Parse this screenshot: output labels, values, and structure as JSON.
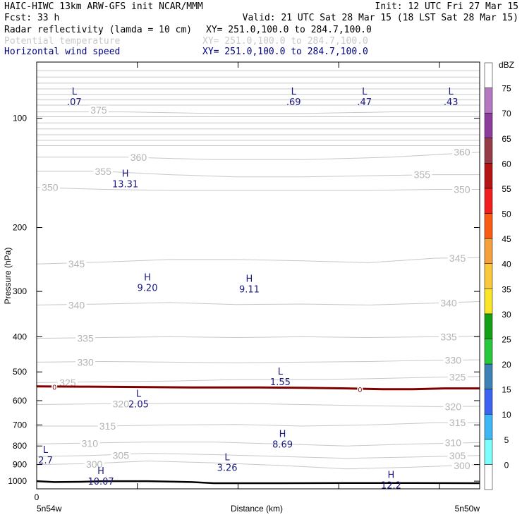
{
  "header": {
    "line1_left": "HAIC-HIWC 13km ARW-GFS init   NCAR/MMM",
    "line1_right": "Init: 12 UTC Fri 27 Mar 15",
    "fcst": "Fcst:   33 h",
    "valid": "Valid: 21 UTC Sat 28 Mar 15 (18 LST Sat 28 Mar 15)",
    "fields": [
      {
        "name": "Radar reflectivity (lamda = 10 cm)",
        "xy": "XY= 251.0,100.0 to 284.7,100.0",
        "color": "#000000"
      },
      {
        "name": "Potential temperature",
        "xy": "XY= 251.0,100.0 to 284.7,100.0",
        "color": "#c8c8c8"
      },
      {
        "name": "Horizontal wind speed",
        "xy": "XY= 251.0,100.0 to 284.7,100.0",
        "color": "#000080"
      }
    ]
  },
  "chart_data": {
    "type": "cross-section",
    "ylabel": "Pressure (hPa)",
    "xlabel": "Distance (km)",
    "x_tick_zero": "0",
    "x_left_label": "5n54w",
    "x_right_label": "5n50w",
    "y_ticks": [
      100,
      200,
      300,
      400,
      500,
      600,
      700,
      800,
      900,
      1000
    ],
    "y_scale": "log",
    "ylim": [
      1050,
      70
    ],
    "xlim": [
      0,
      100
    ],
    "colorbar": {
      "unit": "dBZ",
      "levels": [
        0,
        5,
        10,
        15,
        20,
        25,
        30,
        35,
        40,
        45,
        50,
        55,
        60,
        65,
        70,
        75
      ],
      "colors": [
        "#ffffff",
        "#7dfdfd",
        "#3fb6f5",
        "#3c64f0",
        "#3c82b4",
        "#28c83c",
        "#14a014",
        "#fae628",
        "#fac83c",
        "#f5a03c",
        "#fa5a14",
        "#f01e1e",
        "#b41414",
        "#963c46",
        "#8c3c9b",
        "#b478c3",
        "#ffffff"
      ]
    },
    "theta_contours": [
      {
        "value": 300,
        "labels": [
          {
            "x": 13,
            "p": 897
          },
          {
            "x": 96,
            "p": 905
          }
        ],
        "path": [
          [
            0,
            900
          ],
          [
            12,
            895
          ],
          [
            25,
            880
          ],
          [
            40,
            890
          ],
          [
            55,
            905
          ],
          [
            70,
            925
          ],
          [
            85,
            915
          ],
          [
            100,
            900
          ]
        ]
      },
      {
        "value": 305,
        "labels": [
          {
            "x": 19,
            "p": 848
          },
          {
            "x": 95,
            "p": 850
          }
        ],
        "path": [
          [
            0,
            855
          ],
          [
            12,
            850
          ],
          [
            25,
            838
          ],
          [
            40,
            845
          ],
          [
            55,
            855
          ],
          [
            70,
            865
          ],
          [
            85,
            858
          ],
          [
            100,
            850
          ]
        ]
      },
      {
        "value": 310,
        "labels": [
          {
            "x": 12,
            "p": 787
          },
          {
            "x": 94,
            "p": 783
          }
        ],
        "path": [
          [
            0,
            790
          ],
          [
            12,
            785
          ],
          [
            25,
            780
          ],
          [
            40,
            780
          ],
          [
            55,
            790
          ],
          [
            70,
            800
          ],
          [
            85,
            790
          ],
          [
            100,
            783
          ]
        ]
      },
      {
        "value": 315,
        "labels": [
          {
            "x": 16,
            "p": 705
          },
          {
            "x": 95,
            "p": 690
          }
        ],
        "path": [
          [
            0,
            705
          ],
          [
            15,
            705
          ],
          [
            30,
            700
          ],
          [
            45,
            698
          ],
          [
            60,
            705
          ],
          [
            75,
            700
          ],
          [
            90,
            690
          ],
          [
            100,
            690
          ]
        ]
      },
      {
        "value": 320,
        "labels": [
          {
            "x": 19,
            "p": 612
          },
          {
            "x": 94,
            "p": 623
          }
        ],
        "path": [
          [
            0,
            615
          ],
          [
            15,
            612
          ],
          [
            30,
            610
          ],
          [
            45,
            610
          ],
          [
            60,
            615
          ],
          [
            75,
            620
          ],
          [
            90,
            623
          ],
          [
            100,
            622
          ]
        ]
      },
      {
        "value": 325,
        "labels": [
          {
            "x": 7,
            "p": 535
          },
          {
            "x": 95,
            "p": 517
          }
        ],
        "path": [
          [
            0,
            535
          ],
          [
            15,
            532
          ],
          [
            30,
            530
          ],
          [
            45,
            525
          ],
          [
            60,
            525
          ],
          [
            75,
            522
          ],
          [
            90,
            517
          ],
          [
            100,
            515
          ]
        ]
      },
      {
        "value": 330,
        "labels": [
          {
            "x": 11,
            "p": 470
          },
          {
            "x": 94,
            "p": 464
          }
        ],
        "path": [
          [
            0,
            470
          ],
          [
            15,
            468
          ],
          [
            30,
            470
          ],
          [
            45,
            472
          ],
          [
            60,
            470
          ],
          [
            75,
            468
          ],
          [
            90,
            464
          ],
          [
            100,
            463
          ]
        ]
      },
      {
        "value": 335,
        "labels": [
          {
            "x": 11,
            "p": 404
          },
          {
            "x": 93,
            "p": 400
          }
        ],
        "path": [
          [
            0,
            404
          ],
          [
            15,
            402
          ],
          [
            30,
            400
          ],
          [
            45,
            402
          ],
          [
            60,
            400
          ],
          [
            75,
            402
          ],
          [
            90,
            400
          ],
          [
            100,
            398
          ]
        ]
      },
      {
        "value": 340,
        "labels": [
          {
            "x": 9,
            "p": 327
          },
          {
            "x": 93,
            "p": 323
          }
        ],
        "path": [
          [
            0,
            327
          ],
          [
            15,
            325
          ],
          [
            30,
            322
          ],
          [
            45,
            326
          ],
          [
            60,
            325
          ],
          [
            75,
            327
          ],
          [
            90,
            323
          ],
          [
            100,
            320
          ]
        ]
      },
      {
        "value": 345,
        "labels": [
          {
            "x": 9,
            "p": 252
          },
          {
            "x": 95,
            "p": 243
          }
        ],
        "path": [
          [
            0,
            252
          ],
          [
            15,
            249
          ],
          [
            30,
            245
          ],
          [
            45,
            245
          ],
          [
            60,
            247
          ],
          [
            75,
            250
          ],
          [
            90,
            243
          ],
          [
            100,
            242
          ]
        ]
      },
      {
        "value": 350,
        "labels": [
          {
            "x": 3,
            "p": 155
          },
          {
            "x": 96,
            "p": 157
          }
        ],
        "path": [
          [
            0,
            155
          ],
          [
            15,
            157
          ],
          [
            30,
            158
          ],
          [
            45,
            158
          ],
          [
            60,
            158
          ],
          [
            75,
            158
          ],
          [
            90,
            157
          ],
          [
            100,
            157
          ]
        ]
      },
      {
        "value": 355,
        "labels": [
          {
            "x": 15,
            "p": 140
          },
          {
            "x": 87,
            "p": 143
          }
        ],
        "path": [
          [
            0,
            140
          ],
          [
            15,
            140
          ],
          [
            30,
            143
          ],
          [
            45,
            145
          ],
          [
            60,
            145
          ],
          [
            75,
            144
          ],
          [
            90,
            143
          ],
          [
            100,
            143
          ]
        ]
      },
      {
        "value": 360,
        "labels": [
          {
            "x": 23,
            "p": 128
          },
          {
            "x": 96,
            "p": 124
          }
        ],
        "path": [
          [
            0,
            128
          ],
          [
            20,
            128
          ],
          [
            40,
            130
          ],
          [
            60,
            130
          ],
          [
            80,
            128
          ],
          [
            100,
            124
          ]
        ]
      },
      {
        "value": 375,
        "labels": [
          {
            "x": 14,
            "p": 95
          }
        ],
        "path": [
          [
            0,
            96
          ],
          [
            20,
            96
          ],
          [
            40,
            97
          ],
          [
            60,
            97
          ],
          [
            80,
            96
          ],
          [
            100,
            96
          ]
        ]
      }
    ],
    "stratosphere_lines": [
      74,
      77,
      80,
      83,
      86,
      89,
      92,
      99,
      103,
      107,
      111,
      115,
      119
    ],
    "reflectivity_zero_contour": {
      "label": "0",
      "labels": [
        {
          "x": 4,
          "p": 550
        },
        {
          "x": 73,
          "p": 558
        }
      ],
      "path": [
        [
          0,
          548
        ],
        [
          10,
          549
        ],
        [
          20,
          550
        ],
        [
          35,
          552
        ],
        [
          50,
          552
        ],
        [
          60,
          553
        ],
        [
          70,
          555
        ],
        [
          78,
          558
        ],
        [
          85,
          558
        ],
        [
          92,
          555
        ],
        [
          100,
          555
        ]
      ]
    },
    "terrain": [
      [
        0,
        1000
      ],
      [
        4,
        1006
      ],
      [
        10,
        1004
      ],
      [
        15,
        1000
      ],
      [
        25,
        1000
      ],
      [
        35,
        1006
      ],
      [
        40,
        1013
      ],
      [
        55,
        1013
      ],
      [
        70,
        1012
      ],
      [
        85,
        1012
      ],
      [
        100,
        1013
      ]
    ],
    "wind_extrema": [
      {
        "type": "L",
        "value": ".07",
        "x": 8.5,
        "p": 86
      },
      {
        "type": "H",
        "value": "13.31",
        "x": 20,
        "p": 145
      },
      {
        "type": "L",
        "value": ".69",
        "x": 58,
        "p": 86
      },
      {
        "type": "L",
        "value": ".47",
        "x": 74,
        "p": 86
      },
      {
        "type": "L",
        "value": ".43",
        "x": 93.5,
        "p": 86
      },
      {
        "type": "H",
        "value": "9.20",
        "x": 25,
        "p": 280
      },
      {
        "type": "H",
        "value": "9.11",
        "x": 48,
        "p": 282
      },
      {
        "type": "L",
        "value": "1.55",
        "x": 55,
        "p": 508
      },
      {
        "type": "L",
        "value": "2.05",
        "x": 23,
        "p": 585
      },
      {
        "type": "H",
        "value": "8.69",
        "x": 55.5,
        "p": 755
      },
      {
        "type": "L",
        "value": "2.7",
        "x": 2,
        "p": 835
      },
      {
        "type": "L",
        "value": "3.26",
        "x": 43,
        "p": 875
      },
      {
        "type": "H",
        "value": "10.07",
        "x": 14.5,
        "p": 955
      },
      {
        "type": "H",
        "value": "12.2",
        "x": 80,
        "p": 980
      }
    ]
  }
}
